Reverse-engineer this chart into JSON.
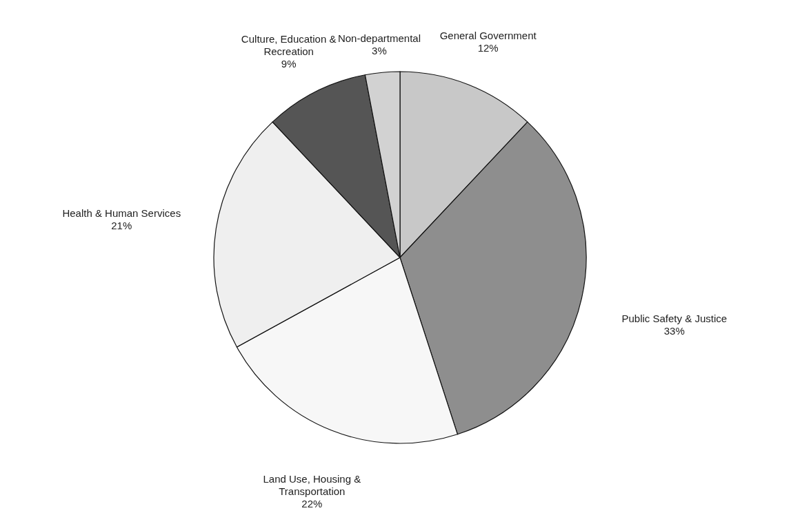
{
  "chart_data": {
    "type": "pie",
    "categories": [
      "General Government",
      "Public Safety & Justice",
      "Land Use, Housing &\nTransportation",
      "Health & Human Services",
      "Culture, Education &\nRecreation",
      "Non-departmental"
    ],
    "values": [
      12,
      33,
      22,
      21,
      9,
      3
    ],
    "value_labels": [
      "12%",
      "33%",
      "22%",
      "21%",
      "9%",
      "3%"
    ],
    "colors": [
      "#c8c8c8",
      "#8e8e8e",
      "#f7f7f7",
      "#efefef",
      "#555555",
      "#d2d2d2"
    ]
  }
}
